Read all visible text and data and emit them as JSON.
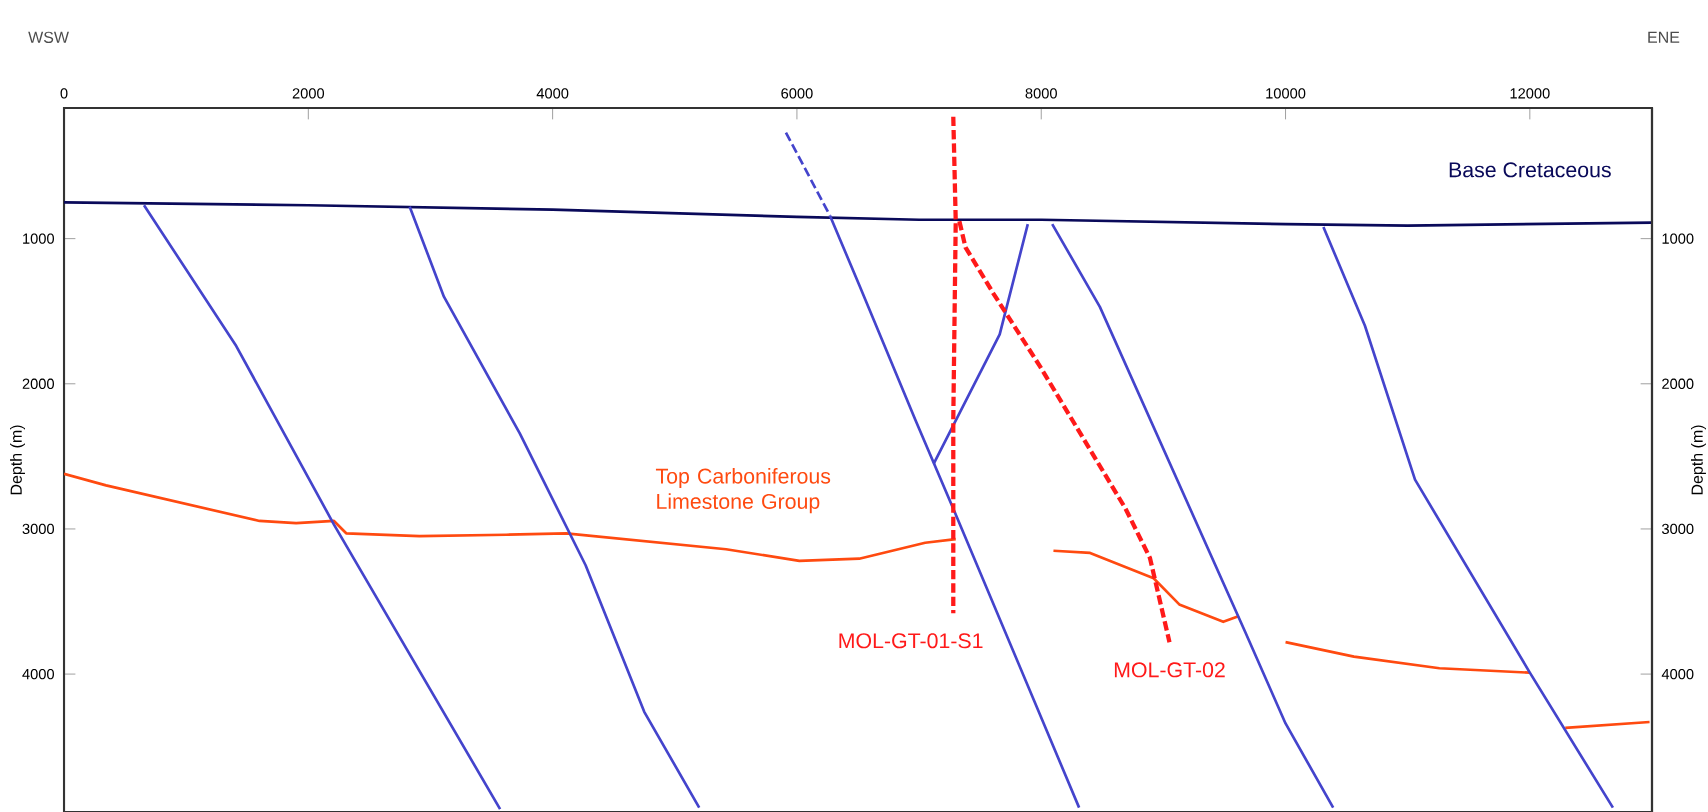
{
  "chart_data": {
    "type": "line",
    "ylabel": "Depth (m)",
    "y2label": "Depth (m)",
    "annotations": [
      "WSW",
      "ENE"
    ],
    "xlim": [
      0,
      13000
    ],
    "xticks": [
      0,
      2000,
      4000,
      6000,
      8000,
      10000,
      12000
    ],
    "ylim": [
      4950,
      100
    ],
    "yticks": [
      1000,
      2000,
      3000,
      4000
    ],
    "y2lim": [
      4950,
      100
    ],
    "y2ticks": [
      1000,
      2000,
      3000,
      4000
    ],
    "grid": false,
    "series": [
      {
        "name": "Base Cretaceous",
        "color": "#0a0a5a",
        "x": [
          0,
          2000,
          4000,
          6000,
          7000,
          8000,
          10000,
          11000,
          12000,
          13000
        ],
        "values": [
          750,
          770,
          800,
          850,
          870,
          870,
          900,
          910,
          900,
          890
        ]
      },
      {
        "name": "Top Carboniferous Limestone Group",
        "color": "#ff4a10",
        "x": [
          0,
          344,
          1600,
          1900,
          2210,
          2310,
          2910,
          3620,
          4110,
          5420,
          6020,
          6510,
          7050,
          7300,
          7380,
          8100,
          8400,
          8920,
          9130,
          9490,
          9620,
          9750,
          10000,
          10560,
          11260,
          12000,
          12100,
          12290,
          12980
        ],
        "values": [
          2620,
          2700,
          2945,
          2960,
          2945,
          3030,
          3050,
          3040,
          3030,
          3140,
          3220,
          3205,
          3095,
          3070,
          null,
          3150,
          3165,
          3340,
          3520,
          3640,
          3600,
          null,
          3780,
          3880,
          3960,
          3990,
          null,
          4370,
          4330
        ]
      },
      {
        "color": "#4444cc",
        "x": [
          655,
          1410,
          2210,
          3570
        ],
        "values": [
          770,
          1740,
          2970,
          4930
        ]
      },
      {
        "color": "#4444cc",
        "x": [
          2830,
          3110,
          3730,
          4270,
          4750,
          5200
        ],
        "values": [
          780,
          1400,
          2340,
          3250,
          4260,
          4920
        ]
      },
      {
        "color": "#4444cc",
        "line_style": "dashed",
        "x": [
          5910,
          6270
        ],
        "values": [
          270,
          840
        ]
      },
      {
        "color": "#4444cc",
        "x": [
          6270,
          6510,
          6970,
          7300,
          8310
        ],
        "values": [
          840,
          1320,
          2250,
          2900,
          4920
        ]
      },
      {
        "color": "#4444cc",
        "x": [
          7890,
          7660,
          7120
        ],
        "values": [
          900,
          1660,
          2550
        ]
      },
      {
        "color": "#4444cc",
        "x": [
          8090,
          8480,
          9670,
          10000,
          10390
        ],
        "values": [
          900,
          1470,
          3710,
          4340,
          4920
        ]
      },
      {
        "color": "#4444cc",
        "x": [
          10310,
          10650,
          11060,
          12000,
          12680
        ],
        "values": [
          920,
          1600,
          2660,
          3990,
          4920
        ]
      },
      {
        "name": "MOL-GT-01-S1",
        "color": "#ff1a1a",
        "line_style": "dashed",
        "x": [
          7280,
          7300,
          7280,
          7280
        ],
        "values": [
          160,
          880,
          2250,
          3580
        ]
      },
      {
        "name": "MOL-GT-02",
        "color": "#ff1a1a",
        "line_style": "dashed",
        "x": [
          7330,
          7380,
          7610,
          7990,
          8690,
          8890,
          9050
        ],
        "values": [
          880,
          1060,
          1380,
          1880,
          2860,
          3200,
          3780
        ]
      }
    ]
  }
}
